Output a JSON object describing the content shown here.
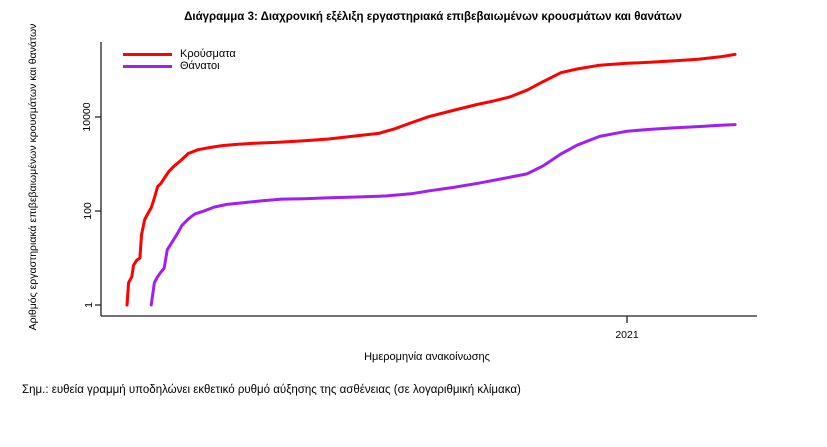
{
  "figure": {
    "title": "Διάγραμμα 3: Διαχρονική εξέλιξη εργαστηριακά επιβεβαιωμένων κρουσμάτων και θανάτων",
    "note": "Σημ.: ευθεία γραμμή υποδηλώνει εκθετικό ρυθμό αύξησης της ασθένειας (σε λογαριθμική κλίμακα)"
  },
  "chart_data": {
    "type": "line",
    "title": "Διάγραμμα 3: Διαχρονική εξέλιξη εργαστηριακά επιβεβαιωμένων κρουσμάτων και θανάτων",
    "xlabel": "Ημερομηνία ανακοίνωσης",
    "ylabel": "Αριθμός εργαστηριακά επιβεβαιωμένων κρουσμάτων και θανάτων",
    "y_scale": "log10",
    "y_ticks": [
      "1",
      "100",
      "10000"
    ],
    "x_tick_labels": [
      "2021"
    ],
    "x_range": [
      "2020-02-26",
      "2021-03-09"
    ],
    "ylim": [
      1,
      300000
    ],
    "grid": false,
    "legend_position": "top-left",
    "axis_color": "#222222",
    "series": [
      {
        "name": "Κρούσματα",
        "color": "#ff0000",
        "points": [
          [
            "2020-02-26",
            1
          ],
          [
            "2020-02-27",
            3
          ],
          [
            "2020-02-29",
            4
          ],
          [
            "2020-03-01",
            7
          ],
          [
            "2020-03-03",
            9
          ],
          [
            "2020-03-05",
            10
          ],
          [
            "2020-03-06",
            31
          ],
          [
            "2020-03-08",
            66
          ],
          [
            "2020-03-10",
            89
          ],
          [
            "2020-03-12",
            117
          ],
          [
            "2020-03-14",
            190
          ],
          [
            "2020-03-16",
            331
          ],
          [
            "2020-03-18",
            387
          ],
          [
            "2020-03-20",
            495
          ],
          [
            "2020-03-23",
            695
          ],
          [
            "2020-03-26",
            892
          ],
          [
            "2020-03-30",
            1156
          ],
          [
            "2020-04-04",
            1673
          ],
          [
            "2020-04-10",
            2011
          ],
          [
            "2020-04-17",
            2235
          ],
          [
            "2020-04-25",
            2463
          ],
          [
            "2020-05-05",
            2632
          ],
          [
            "2020-05-15",
            2770
          ],
          [
            "2020-05-30",
            2915
          ],
          [
            "2020-06-15",
            3134
          ],
          [
            "2020-06-30",
            3409
          ],
          [
            "2020-07-15",
            3883
          ],
          [
            "2020-07-31",
            4477
          ],
          [
            "2020-08-10",
            5623
          ],
          [
            "2020-08-20",
            7472
          ],
          [
            "2020-08-31",
            10134
          ],
          [
            "2020-09-15",
            13730
          ],
          [
            "2020-09-30",
            18475
          ],
          [
            "2020-10-10",
            21772
          ],
          [
            "2020-10-20",
            26469
          ],
          [
            "2020-10-31",
            37196
          ],
          [
            "2020-11-10",
            56698
          ],
          [
            "2020-11-21",
            87812
          ],
          [
            "2020-12-01",
            105271
          ],
          [
            "2020-12-15",
            126372
          ],
          [
            "2021-01-01",
            138850
          ],
          [
            "2021-01-15",
            146020
          ],
          [
            "2021-01-31",
            156957
          ],
          [
            "2021-02-14",
            168627
          ],
          [
            "2021-02-28",
            191100
          ],
          [
            "2021-03-09",
            214424
          ]
        ]
      },
      {
        "name": "Θάνατοι",
        "color": "#a020f0",
        "points": [
          [
            "2020-03-12",
            1
          ],
          [
            "2020-03-14",
            3
          ],
          [
            "2020-03-16",
            4
          ],
          [
            "2020-03-18",
            5
          ],
          [
            "2020-03-20",
            6
          ],
          [
            "2020-03-22",
            15
          ],
          [
            "2020-03-25",
            22
          ],
          [
            "2020-03-28",
            32
          ],
          [
            "2020-03-31",
            49
          ],
          [
            "2020-04-04",
            68
          ],
          [
            "2020-04-08",
            86
          ],
          [
            "2020-04-14",
            101
          ],
          [
            "2020-04-20",
            121
          ],
          [
            "2020-04-28",
            138
          ],
          [
            "2020-05-08",
            150
          ],
          [
            "2020-05-20",
            166
          ],
          [
            "2020-06-01",
            179
          ],
          [
            "2020-06-15",
            183
          ],
          [
            "2020-07-01",
            192
          ],
          [
            "2020-07-20",
            200
          ],
          [
            "2020-08-05",
            210
          ],
          [
            "2020-08-20",
            232
          ],
          [
            "2020-09-01",
            271
          ],
          [
            "2020-09-15",
            317
          ],
          [
            "2020-10-01",
            391
          ],
          [
            "2020-10-15",
            482
          ],
          [
            "2020-10-31",
            615
          ],
          [
            "2020-11-10",
            909
          ],
          [
            "2020-11-21",
            1630
          ],
          [
            "2020-12-01",
            2517
          ],
          [
            "2020-12-15",
            3870
          ],
          [
            "2021-01-01",
            4977
          ],
          [
            "2021-01-15",
            5441
          ],
          [
            "2021-01-31",
            5903
          ],
          [
            "2021-02-14",
            6249
          ],
          [
            "2021-02-28",
            6664
          ],
          [
            "2021-03-09",
            6886
          ]
        ]
      }
    ]
  }
}
